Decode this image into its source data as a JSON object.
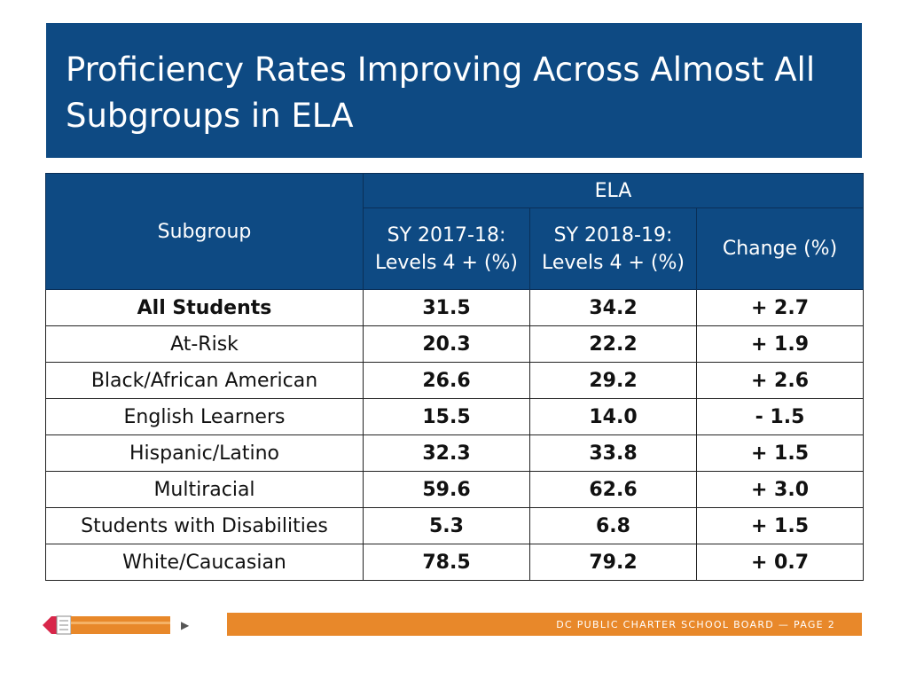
{
  "title": "Proficiency Rates Improving Across Almost All Subgroups in ELA",
  "table": {
    "subgroup_header": "Subgroup",
    "ela_header": "ELA",
    "col_2017": "SY 2017-18: Levels 4 + (%)",
    "col_2018": "SY 2018-19: Levels 4 + (%)",
    "col_change": "Change (%)",
    "rows": [
      {
        "subgroup": "All Students",
        "sy1718": "31.5",
        "sy1819": "34.2",
        "change": "+ 2.7"
      },
      {
        "subgroup": "At-Risk",
        "sy1718": "20.3",
        "sy1819": "22.2",
        "change": "+ 1.9"
      },
      {
        "subgroup": "Black/African American",
        "sy1718": "26.6",
        "sy1819": "29.2",
        "change": "+ 2.6"
      },
      {
        "subgroup": "English Learners",
        "sy1718": "15.5",
        "sy1819": "14.0",
        "change": "- 1.5"
      },
      {
        "subgroup": "Hispanic/Latino",
        "sy1718": "32.3",
        "sy1819": "33.8",
        "change": "+ 1.5"
      },
      {
        "subgroup": "Multiracial",
        "sy1718": "59.6",
        "sy1819": "62.6",
        "change": "+ 3.0"
      },
      {
        "subgroup": "Students with Disabilities",
        "sy1718": "5.3",
        "sy1819": "6.8",
        "change": "+ 1.5"
      },
      {
        "subgroup": "White/Caucasian",
        "sy1718": "78.5",
        "sy1819": "79.2",
        "change": "+ 0.7"
      }
    ]
  },
  "colors": {
    "brand_blue": "#0e4a83",
    "positive": "#6a9f3a",
    "negative": "#c8203e",
    "neutral": "#7d7d7d",
    "footer_orange": "#e8882a"
  },
  "footer": {
    "text": "DC PUBLIC CHARTER SCHOOL BOARD — PAGE 2"
  }
}
